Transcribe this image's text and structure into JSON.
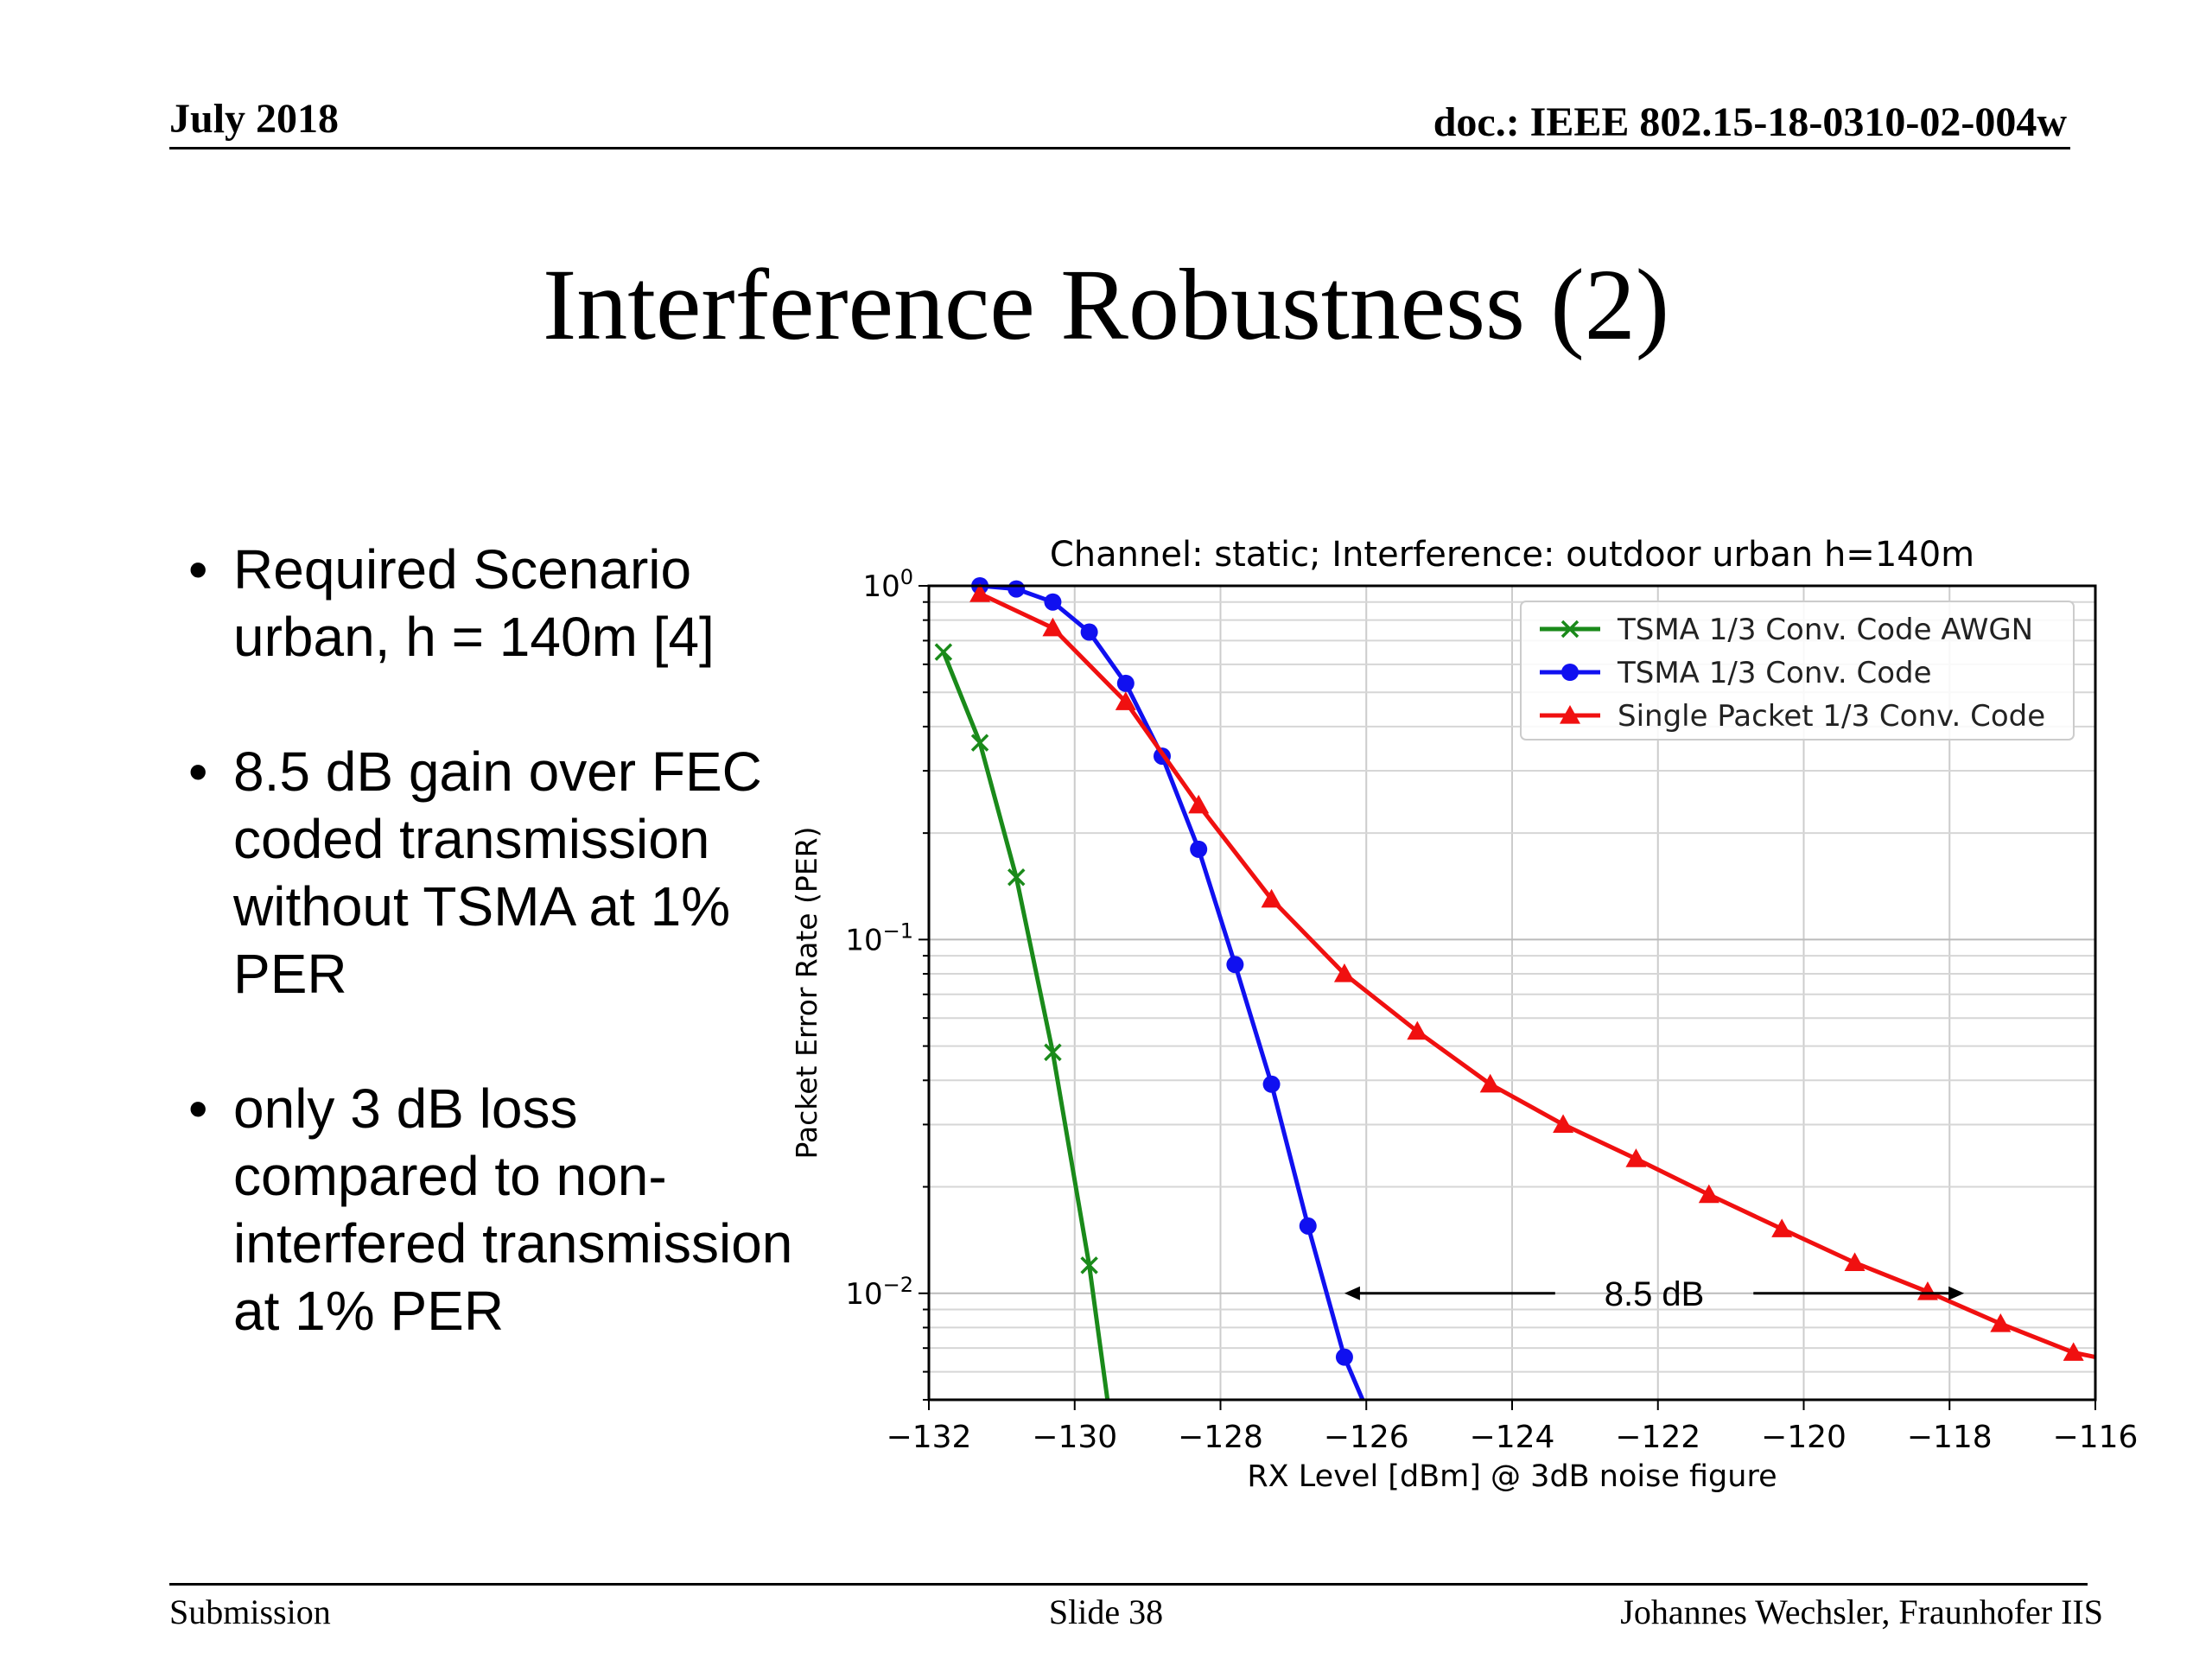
{
  "header": {
    "date": "July 2018",
    "doc": "doc.: IEEE 802.15-18-0310-02-004w"
  },
  "slide_title": "Interference Robustness (2)",
  "bullets": [
    "Required Scenario urban, h = 140m [4]",
    "8.5 dB gain over FEC coded transmission without TSMA at 1% PER",
    "only 3 dB loss compared to non-interfered transmission at 1% PER"
  ],
  "footer": {
    "left": "Submission",
    "center": "Slide 38",
    "right": "Johannes Wechsler, Fraunhofer IIS"
  },
  "chart_data": {
    "type": "line",
    "title": "Channel: static; Interference: outdoor urban h=140m",
    "xlabel": "RX Level [dBm] @ 3dB noise figure",
    "ylabel": "Packet Error Rate (PER)",
    "xlim": [
      -132,
      -116
    ],
    "ylim": [
      0.005,
      1
    ],
    "yscale": "log",
    "xticks": [
      -132,
      -130,
      -128,
      -126,
      -124,
      -122,
      -120,
      -118,
      -116
    ],
    "xtick_labels": [
      "−132",
      "−130",
      "−128",
      "−126",
      "−124",
      "−122",
      "−120",
      "−118",
      "−116"
    ],
    "yticks": [
      {
        "value": 1,
        "base": "10",
        "exp": "0"
      },
      {
        "value": 0.1,
        "base": "10",
        "exp": "−1"
      },
      {
        "value": 0.01,
        "base": "10",
        "exp": "−2"
      }
    ],
    "grid": true,
    "legend_position": "upper right",
    "series": [
      {
        "name": "TSMA 1/3 Conv. Code AWGN",
        "color": "#1a8a1a",
        "marker": "x",
        "x": [
          -131.8,
          -131.3,
          -130.8,
          -130.3,
          -129.8
        ],
        "y": [
          0.65,
          0.36,
          0.15,
          0.048,
          0.012
        ],
        "tail": {
          "x": -129.55,
          "y": 0.005
        }
      },
      {
        "name": "TSMA 1/3 Conv. Code",
        "color": "#1010f0",
        "marker": "o",
        "x": [
          -131.3,
          -130.8,
          -130.3,
          -129.8,
          -129.3,
          -128.8,
          -128.3,
          -127.8,
          -127.3,
          -126.8,
          -126.3
        ],
        "y": [
          1.0,
          0.98,
          0.9,
          0.74,
          0.53,
          0.33,
          0.18,
          0.085,
          0.039,
          0.0155,
          0.0066
        ],
        "head": {
          "x": -131.35,
          "y": 1.0
        },
        "tail": {
          "x": -126.05,
          "y": 0.005
        }
      },
      {
        "name": "Single Packet 1/3 Conv. Code",
        "color": "#f01010",
        "marker": "^",
        "x": [
          -131.3,
          -130.3,
          -129.3,
          -128.3,
          -127.3,
          -126.3,
          -125.3,
          -124.3,
          -123.3,
          -122.3,
          -121.3,
          -120.3,
          -119.3,
          -118.3,
          -117.3,
          -116.3
        ],
        "y": [
          0.95,
          0.76,
          0.47,
          0.24,
          0.13,
          0.08,
          0.055,
          0.039,
          0.03,
          0.024,
          0.019,
          0.0152,
          0.0122,
          0.0101,
          0.0082,
          0.0068
        ],
        "tail": {
          "x": -116.0,
          "y": 0.0066
        }
      }
    ],
    "annotation": {
      "text": "8.5 dB",
      "from_x": -126.3,
      "to_x": -117.8,
      "y": 0.01
    }
  }
}
